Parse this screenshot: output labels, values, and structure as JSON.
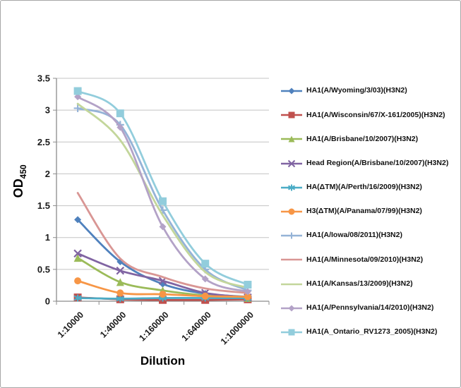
{
  "chart_data": {
    "type": "line",
    "title": "",
    "xlabel": "Dilution",
    "ylabel": {
      "main": "OD",
      "sub": "450"
    },
    "categories": [
      "1:10000",
      "1:40000",
      "1:160000",
      "1:640000",
      "1:1000000"
    ],
    "yticks": [
      "0",
      "0.5",
      "1",
      "1.5",
      "2",
      "2.5",
      "3",
      "3.5"
    ],
    "ylim": [
      0,
      3.5
    ],
    "grid": "horizontal",
    "legend_position": "right",
    "series": [
      {
        "name": "HA1(A/Wyoming/3/03)(H3N2)",
        "color": "#4F81BD",
        "marker": "diamond",
        "values": [
          1.28,
          0.62,
          0.27,
          0.12,
          0.07
        ]
      },
      {
        "name": "HA1(A/Wisconsin/67/X-161/2005)(H3N2)",
        "color": "#C0504D",
        "marker": "square",
        "values": [
          0.06,
          0.03,
          0.02,
          0.02,
          0.03
        ]
      },
      {
        "name": "HA1(A/Brisbane/10/2007)(H3N2)",
        "color": "#9BBB59",
        "marker": "triangle",
        "values": [
          0.68,
          0.3,
          0.17,
          0.09,
          0.05
        ]
      },
      {
        "name": "Head Region(A/Brisbane/10/2007)(H3N2)",
        "color": "#8064A2",
        "marker": "x",
        "values": [
          0.75,
          0.48,
          0.32,
          0.13,
          0.06
        ]
      },
      {
        "name": "HA(ΔTM)(A/Perth/16/2009)(H3N2)",
        "color": "#4BACC6",
        "marker": "asterisk",
        "values": [
          0.05,
          0.04,
          0.05,
          0.05,
          0.05
        ]
      },
      {
        "name": "H3(ΔTM)(A/Panama/07/99)(H3N2)",
        "color": "#F79646",
        "marker": "circle",
        "values": [
          0.32,
          0.13,
          0.11,
          0.08,
          0.07
        ]
      },
      {
        "name": "HA1(A/Iowa/08/2011)(H3N2)",
        "color": "#95B3D7",
        "marker": "plus",
        "values": [
          3.03,
          2.77,
          1.43,
          0.5,
          0.17
        ]
      },
      {
        "name": "HA1(A/Minnesota/09/2010)(H3N2)",
        "color": "#D99694",
        "marker": "none",
        "values": [
          1.7,
          0.67,
          0.38,
          0.2,
          0.13
        ]
      },
      {
        "name": "HA1(A/Kansas/13/2009)(H3N2)",
        "color": "#C3D69B",
        "marker": "none",
        "values": [
          3.1,
          2.53,
          1.35,
          0.46,
          0.21
        ]
      },
      {
        "name": "HA1(A/Pennsylvania/14/2010)(H3N2)",
        "color": "#B3A2C7",
        "marker": "diamond",
        "values": [
          3.21,
          2.73,
          1.17,
          0.35,
          0.15
        ]
      },
      {
        "name": "HA1(A_Ontario_RV1273_2005)(H3N2)",
        "color": "#92CDDC",
        "marker": "square",
        "values": [
          3.3,
          2.95,
          1.57,
          0.59,
          0.26
        ]
      }
    ]
  },
  "colors": {
    "gridline": "#C3C3C3",
    "axis": "#8C8C8C",
    "tick_text": "#1a1a1a",
    "frame_border": "#A6A6A6"
  }
}
